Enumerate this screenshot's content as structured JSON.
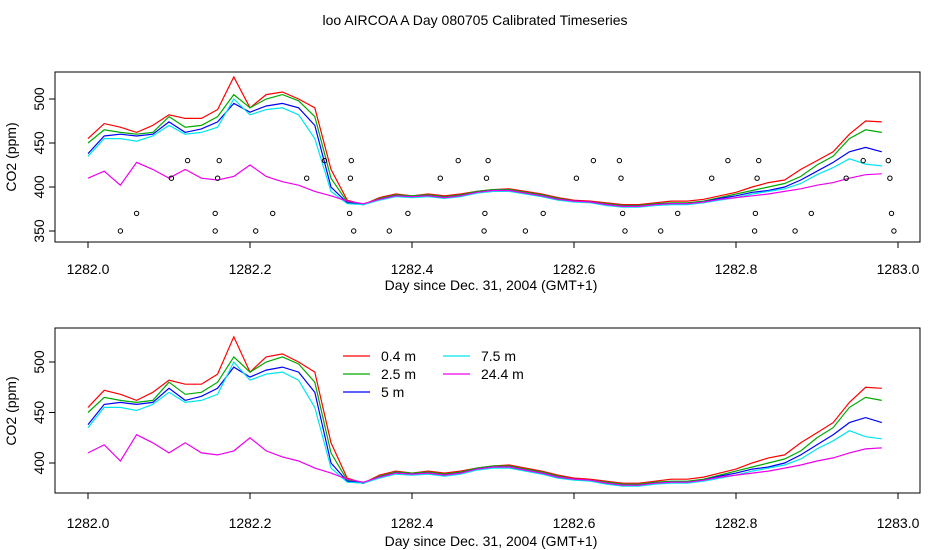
{
  "chart_data": [
    {
      "type": "line",
      "title": "loo AIRCOA A  Day 080705  Calibrated Timeseries",
      "xlabel": "Day since Dec. 31, 2004 (GMT+1)",
      "ylabel": "CO2 (ppm)",
      "xlim": [
        1282.0,
        1283.0
      ],
      "ylim": [
        345,
        530
      ],
      "xticks": [
        1282.0,
        1282.2,
        1282.4,
        1282.6,
        1282.8,
        1283.0
      ],
      "xtick_labels": [
        "1282.0",
        "1282.2",
        "1282.4",
        "1282.6",
        "1282.8",
        "1283.0"
      ],
      "yticks": [
        350,
        400,
        450,
        500
      ],
      "ytick_labels": [
        "350",
        "400",
        "450",
        "500"
      ],
      "grid": false,
      "x": [
        1282.0,
        1282.02,
        1282.04,
        1282.06,
        1282.08,
        1282.1,
        1282.12,
        1282.14,
        1282.16,
        1282.18,
        1282.2,
        1282.22,
        1282.24,
        1282.26,
        1282.28,
        1282.3,
        1282.32,
        1282.34,
        1282.36,
        1282.38,
        1282.4,
        1282.42,
        1282.44,
        1282.46,
        1282.48,
        1282.5,
        1282.52,
        1282.54,
        1282.56,
        1282.58,
        1282.6,
        1282.62,
        1282.64,
        1282.66,
        1282.68,
        1282.7,
        1282.72,
        1282.74,
        1282.76,
        1282.78,
        1282.8,
        1282.82,
        1282.84,
        1282.86,
        1282.88,
        1282.9,
        1282.92,
        1282.94,
        1282.96,
        1282.98
      ],
      "series": [
        {
          "color": "#ff0000",
          "values": [
            455,
            472,
            468,
            462,
            470,
            482,
            478,
            478,
            488,
            525,
            490,
            505,
            508,
            500,
            490,
            420,
            385,
            380,
            388,
            392,
            390,
            392,
            390,
            392,
            395,
            397,
            398,
            395,
            392,
            388,
            385,
            384,
            382,
            380,
            380,
            382,
            384,
            384,
            386,
            390,
            394,
            400,
            405,
            408,
            420,
            430,
            440,
            460,
            475,
            474
          ]
        },
        {
          "color": "#00aa00",
          "values": [
            450,
            465,
            462,
            460,
            462,
            480,
            468,
            470,
            480,
            505,
            490,
            500,
            505,
            498,
            480,
            410,
            383,
            380,
            387,
            391,
            390,
            391,
            389,
            391,
            395,
            397,
            397,
            394,
            391,
            387,
            384,
            383,
            381,
            379,
            379,
            381,
            382,
            382,
            384,
            388,
            392,
            396,
            400,
            404,
            412,
            425,
            435,
            455,
            465,
            462
          ]
        },
        {
          "color": "#0000ff",
          "values": [
            438,
            458,
            460,
            458,
            460,
            474,
            462,
            466,
            474,
            495,
            485,
            492,
            495,
            490,
            470,
            400,
            382,
            380,
            386,
            390,
            389,
            390,
            388,
            390,
            394,
            396,
            396,
            393,
            390,
            386,
            384,
            383,
            380,
            378,
            378,
            380,
            381,
            381,
            383,
            387,
            390,
            394,
            396,
            400,
            408,
            418,
            428,
            440,
            445,
            440
          ]
        },
        {
          "color": "#00e5ee",
          "values": [
            435,
            455,
            455,
            452,
            458,
            470,
            460,
            462,
            468,
            500,
            482,
            488,
            490,
            482,
            455,
            395,
            381,
            380,
            385,
            389,
            388,
            389,
            387,
            389,
            393,
            395,
            395,
            392,
            389,
            385,
            383,
            382,
            379,
            377,
            377,
            379,
            380,
            380,
            382,
            385,
            388,
            392,
            395,
            398,
            404,
            414,
            422,
            432,
            426,
            424
          ]
        },
        {
          "color": "#ee00ee",
          "values": [
            410,
            418,
            402,
            428,
            420,
            410,
            420,
            410,
            408,
            412,
            425,
            412,
            406,
            402,
            395,
            390,
            384,
            381,
            386,
            390,
            389,
            390,
            388,
            390,
            394,
            396,
            396,
            393,
            390,
            386,
            384,
            383,
            380,
            378,
            378,
            380,
            381,
            381,
            383,
            386,
            388,
            390,
            392,
            395,
            398,
            402,
            405,
            410,
            414,
            415
          ]
        }
      ],
      "points": [
        {
          "x": 1282.04,
          "y": 350
        },
        {
          "x": 1282.06,
          "y": 370
        },
        {
          "x": 1282.103,
          "y": 410
        },
        {
          "x": 1282.123,
          "y": 430
        },
        {
          "x": 1282.157,
          "y": 350
        },
        {
          "x": 1282.157,
          "y": 370
        },
        {
          "x": 1282.16,
          "y": 410
        },
        {
          "x": 1282.162,
          "y": 430
        },
        {
          "x": 1282.207,
          "y": 350
        },
        {
          "x": 1282.228,
          "y": 370
        },
        {
          "x": 1282.27,
          "y": 410
        },
        {
          "x": 1282.292,
          "y": 430
        },
        {
          "x": 1282.323,
          "y": 370
        },
        {
          "x": 1282.324,
          "y": 410
        },
        {
          "x": 1282.325,
          "y": 430
        },
        {
          "x": 1282.328,
          "y": 350
        },
        {
          "x": 1282.372,
          "y": 350
        },
        {
          "x": 1282.395,
          "y": 370
        },
        {
          "x": 1282.435,
          "y": 410
        },
        {
          "x": 1282.457,
          "y": 430
        },
        {
          "x": 1282.489,
          "y": 350
        },
        {
          "x": 1282.49,
          "y": 370
        },
        {
          "x": 1282.492,
          "y": 410
        },
        {
          "x": 1282.494,
          "y": 430
        },
        {
          "x": 1282.54,
          "y": 350
        },
        {
          "x": 1282.562,
          "y": 370
        },
        {
          "x": 1282.603,
          "y": 410
        },
        {
          "x": 1282.624,
          "y": 430
        },
        {
          "x": 1282.656,
          "y": 430
        },
        {
          "x": 1282.658,
          "y": 410
        },
        {
          "x": 1282.66,
          "y": 370
        },
        {
          "x": 1282.663,
          "y": 350
        },
        {
          "x": 1282.707,
          "y": 350
        },
        {
          "x": 1282.728,
          "y": 370
        },
        {
          "x": 1282.77,
          "y": 410
        },
        {
          "x": 1282.79,
          "y": 430
        },
        {
          "x": 1282.823,
          "y": 350
        },
        {
          "x": 1282.824,
          "y": 370
        },
        {
          "x": 1282.826,
          "y": 410
        },
        {
          "x": 1282.828,
          "y": 430
        },
        {
          "x": 1282.873,
          "y": 350
        },
        {
          "x": 1282.893,
          "y": 370
        },
        {
          "x": 1282.936,
          "y": 410
        },
        {
          "x": 1282.957,
          "y": 430
        },
        {
          "x": 1282.988,
          "y": 430
        },
        {
          "x": 1282.99,
          "y": 410
        },
        {
          "x": 1282.992,
          "y": 370
        },
        {
          "x": 1282.995,
          "y": 350
        }
      ]
    },
    {
      "type": "line",
      "title": "",
      "xlabel": "Day since Dec. 31, 2004 (GMT+1)",
      "ylabel": "CO2 (ppm)",
      "xlim": [
        1282.0,
        1283.0
      ],
      "ylim": [
        370,
        530
      ],
      "xticks": [
        1282.0,
        1282.2,
        1282.4,
        1282.6,
        1282.8,
        1283.0
      ],
      "xtick_labels": [
        "1282.0",
        "1282.2",
        "1282.4",
        "1282.6",
        "1282.8",
        "1283.0"
      ],
      "yticks": [
        400,
        450,
        500
      ],
      "ytick_labels": [
        "400",
        "450",
        "500"
      ],
      "grid": false,
      "legend": "top-center",
      "x": [
        1282.0,
        1282.02,
        1282.04,
        1282.06,
        1282.08,
        1282.1,
        1282.12,
        1282.14,
        1282.16,
        1282.18,
        1282.2,
        1282.22,
        1282.24,
        1282.26,
        1282.28,
        1282.3,
        1282.32,
        1282.34,
        1282.36,
        1282.38,
        1282.4,
        1282.42,
        1282.44,
        1282.46,
        1282.48,
        1282.5,
        1282.52,
        1282.54,
        1282.56,
        1282.58,
        1282.6,
        1282.62,
        1282.64,
        1282.66,
        1282.68,
        1282.7,
        1282.72,
        1282.74,
        1282.76,
        1282.78,
        1282.8,
        1282.82,
        1282.84,
        1282.86,
        1282.88,
        1282.9,
        1282.92,
        1282.94,
        1282.96,
        1282.98
      ],
      "series": [
        {
          "name": "0.4 m",
          "color": "#ff0000",
          "values": [
            455,
            472,
            468,
            462,
            470,
            482,
            478,
            478,
            488,
            525,
            490,
            505,
            508,
            500,
            490,
            420,
            385,
            380,
            388,
            392,
            390,
            392,
            390,
            392,
            395,
            397,
            398,
            395,
            392,
            388,
            385,
            384,
            382,
            380,
            380,
            382,
            384,
            384,
            386,
            390,
            394,
            400,
            405,
            408,
            420,
            430,
            440,
            460,
            475,
            474
          ]
        },
        {
          "name": "2.5 m",
          "color": "#00aa00",
          "values": [
            450,
            465,
            462,
            460,
            462,
            480,
            468,
            470,
            480,
            505,
            490,
            500,
            505,
            498,
            480,
            410,
            383,
            380,
            387,
            391,
            390,
            391,
            389,
            391,
            395,
            397,
            397,
            394,
            391,
            387,
            384,
            383,
            381,
            379,
            379,
            381,
            382,
            382,
            384,
            388,
            392,
            396,
            400,
            404,
            412,
            425,
            435,
            455,
            465,
            462
          ]
        },
        {
          "name": "5 m",
          "color": "#0000ff",
          "values": [
            438,
            458,
            460,
            458,
            460,
            474,
            462,
            466,
            474,
            495,
            485,
            492,
            495,
            490,
            470,
            400,
            382,
            380,
            386,
            390,
            389,
            390,
            388,
            390,
            394,
            396,
            396,
            393,
            390,
            386,
            384,
            383,
            380,
            378,
            378,
            380,
            381,
            381,
            383,
            387,
            390,
            394,
            396,
            400,
            408,
            418,
            428,
            440,
            445,
            440
          ]
        },
        {
          "name": "7.5 m",
          "color": "#00e5ee",
          "values": [
            435,
            455,
            455,
            452,
            458,
            470,
            460,
            462,
            468,
            500,
            482,
            488,
            490,
            482,
            455,
            395,
            381,
            380,
            385,
            389,
            388,
            389,
            387,
            389,
            393,
            395,
            395,
            392,
            389,
            385,
            383,
            382,
            379,
            377,
            377,
            379,
            380,
            380,
            382,
            385,
            388,
            392,
            395,
            398,
            404,
            414,
            422,
            432,
            426,
            424
          ]
        },
        {
          "name": "24.4 m",
          "color": "#ee00ee",
          "values": [
            410,
            418,
            402,
            428,
            420,
            410,
            420,
            410,
            408,
            412,
            425,
            412,
            406,
            402,
            395,
            390,
            384,
            381,
            386,
            390,
            389,
            390,
            388,
            390,
            394,
            396,
            396,
            393,
            390,
            386,
            384,
            383,
            380,
            378,
            378,
            380,
            381,
            381,
            383,
            386,
            388,
            390,
            392,
            395,
            398,
            402,
            405,
            410,
            414,
            415
          ]
        }
      ]
    }
  ]
}
